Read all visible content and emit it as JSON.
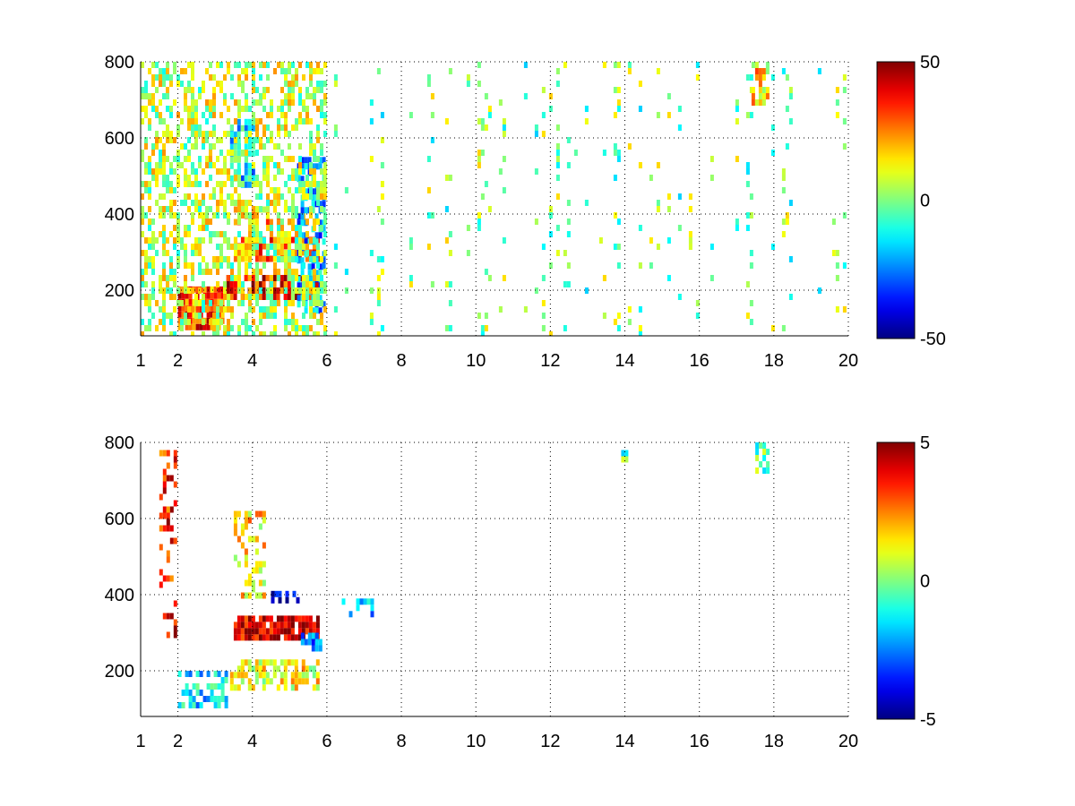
{
  "chart_data": [
    {
      "type": "heatmap",
      "title": "",
      "xlabel": "",
      "ylabel": "",
      "xlim": [
        1,
        20
      ],
      "ylim": [
        80,
        800
      ],
      "xticks": [
        1,
        2,
        4,
        6,
        8,
        10,
        12,
        14,
        16,
        18,
        20
      ],
      "yticks": [
        200,
        400,
        600,
        800
      ],
      "grid": true,
      "colormap": "jet",
      "color_limits": [
        -50,
        50
      ],
      "colorbar_ticks": [
        50,
        0,
        -50
      ],
      "regions": [
        {
          "x": [
            2.0,
            3.2
          ],
          "y": [
            110,
            210
          ],
          "value": 30,
          "density": 0.9
        },
        {
          "x": [
            3.3,
            5.8
          ],
          "y": [
            180,
            240
          ],
          "value": 38,
          "density": 0.8
        },
        {
          "x": [
            3.5,
            5.8
          ],
          "y": [
            280,
            340
          ],
          "value": 28,
          "density": 0.8
        },
        {
          "x": [
            3.5,
            5.5
          ],
          "y": [
            380,
            420
          ],
          "value": 18,
          "density": 0.6
        },
        {
          "x": [
            3.4,
            4.0
          ],
          "y": [
            480,
            650
          ],
          "value": -14,
          "density": 0.6
        },
        {
          "x": [
            5.2,
            5.9
          ],
          "y": [
            150,
            550
          ],
          "value": -20,
          "density": 0.6
        },
        {
          "x": [
            1.0,
            6.0
          ],
          "y": [
            80,
            800
          ],
          "value": 6,
          "density": 0.45
        },
        {
          "x": [
            6.0,
            20.0
          ],
          "y": [
            80,
            800
          ],
          "value": 0,
          "density": 0.12
        },
        {
          "x": [
            17.4,
            17.8
          ],
          "y": [
            700,
            800
          ],
          "value": 15,
          "density": 0.7
        }
      ]
    },
    {
      "type": "heatmap",
      "title": "",
      "xlabel": "",
      "ylabel": "",
      "xlim": [
        1,
        20
      ],
      "ylim": [
        80,
        800
      ],
      "xticks": [
        1,
        2,
        4,
        6,
        8,
        10,
        12,
        14,
        16,
        18,
        20
      ],
      "yticks": [
        200,
        400,
        600,
        800
      ],
      "grid": true,
      "colormap": "jet",
      "color_limits": [
        -5,
        5
      ],
      "colorbar_ticks": [
        5,
        0,
        -5
      ],
      "regions": [
        {
          "x": [
            3.5,
            5.8
          ],
          "y": [
            295,
            345
          ],
          "value": 4.2,
          "density": 0.85
        },
        {
          "x": [
            3.4,
            5.8
          ],
          "y": [
            160,
            230
          ],
          "value": 1.2,
          "density": 0.65
        },
        {
          "x": [
            2.0,
            3.3
          ],
          "y": [
            110,
            200
          ],
          "value": -1.5,
          "density": 0.55
        },
        {
          "x": [
            4.5,
            5.3
          ],
          "y": [
            380,
            410
          ],
          "value": -4.5,
          "density": 0.55
        },
        {
          "x": [
            5.3,
            5.8
          ],
          "y": [
            260,
            300
          ],
          "value": -2.5,
          "density": 0.6
        },
        {
          "x": [
            3.5,
            4.3
          ],
          "y": [
            400,
            620
          ],
          "value": 1.5,
          "density": 0.35
        },
        {
          "x": [
            1.5,
            1.9
          ],
          "y": [
            300,
            780
          ],
          "value": 3.5,
          "density": 0.35
        },
        {
          "x": [
            6.4,
            7.2
          ],
          "y": [
            350,
            390
          ],
          "value": -2.0,
          "density": 0.4
        },
        {
          "x": [
            17.5,
            17.8
          ],
          "y": [
            730,
            800
          ],
          "value": -0.5,
          "density": 0.7
        },
        {
          "x": [
            13.9,
            14.0
          ],
          "y": [
            760,
            780
          ],
          "value": -0.5,
          "density": 0.8
        }
      ]
    }
  ]
}
